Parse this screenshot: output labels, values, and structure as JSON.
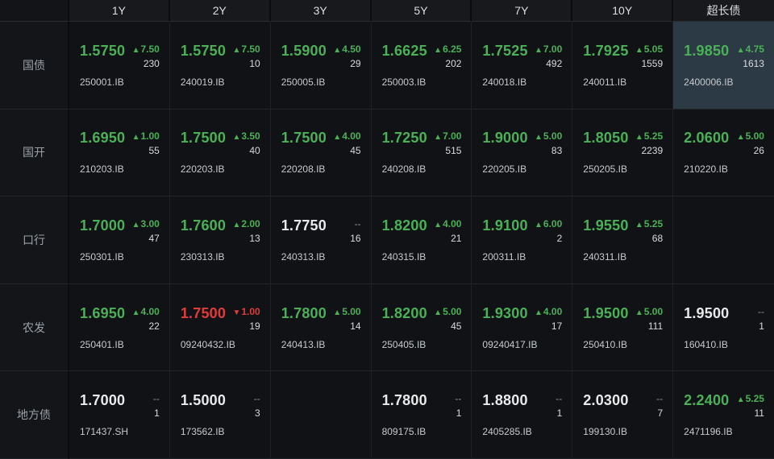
{
  "colors": {
    "up": "#4bb157",
    "down": "#e03c3c",
    "neutral": "#e8e9ea",
    "muted": "#8f969c",
    "selected_bg": "#2b3a45"
  },
  "icons": {
    "up": "▲",
    "down": "▼",
    "flat": "--"
  },
  "board": {
    "columns": [
      "1Y",
      "2Y",
      "3Y",
      "5Y",
      "7Y",
      "10Y",
      "超长债"
    ],
    "rows": [
      {
        "label": "国债",
        "cells": [
          {
            "value": "1.5750",
            "dir": "up",
            "change": "7.50",
            "volume": "230",
            "code": "250001.IB"
          },
          {
            "value": "1.5750",
            "dir": "up",
            "change": "7.50",
            "volume": "10",
            "code": "240019.IB"
          },
          {
            "value": "1.5900",
            "dir": "up",
            "change": "4.50",
            "volume": "29",
            "code": "250005.IB"
          },
          {
            "value": "1.6625",
            "dir": "up",
            "change": "6.25",
            "volume": "202",
            "code": "250003.IB"
          },
          {
            "value": "1.7525",
            "dir": "up",
            "change": "7.00",
            "volume": "492",
            "code": "240018.IB"
          },
          {
            "value": "1.7925",
            "dir": "up",
            "change": "5.05",
            "volume": "1559",
            "code": "240011.IB"
          },
          {
            "value": "1.9850",
            "dir": "up",
            "change": "4.75",
            "volume": "1613",
            "code": "2400006.IB",
            "selected": true
          }
        ]
      },
      {
        "label": "国开",
        "cells": [
          {
            "value": "1.6950",
            "dir": "up",
            "change": "1.00",
            "volume": "55",
            "code": "210203.IB"
          },
          {
            "value": "1.7500",
            "dir": "up",
            "change": "3.50",
            "volume": "40",
            "code": "220203.IB"
          },
          {
            "value": "1.7500",
            "dir": "up",
            "change": "4.00",
            "volume": "45",
            "code": "220208.IB"
          },
          {
            "value": "1.7250",
            "dir": "up",
            "change": "7.00",
            "volume": "515",
            "code": "240208.IB"
          },
          {
            "value": "1.9000",
            "dir": "up",
            "change": "5.00",
            "volume": "83",
            "code": "220205.IB"
          },
          {
            "value": "1.8050",
            "dir": "up",
            "change": "5.25",
            "volume": "2239",
            "code": "250205.IB"
          },
          {
            "value": "2.0600",
            "dir": "up",
            "change": "5.00",
            "volume": "26",
            "code": "210220.IB"
          }
        ]
      },
      {
        "label": "口行",
        "cells": [
          {
            "value": "1.7000",
            "dir": "up",
            "change": "3.00",
            "volume": "47",
            "code": "250301.IB"
          },
          {
            "value": "1.7600",
            "dir": "up",
            "change": "2.00",
            "volume": "13",
            "code": "230313.IB"
          },
          {
            "value": "1.7750",
            "dir": "flat",
            "change": "--",
            "volume": "16",
            "code": "240313.IB"
          },
          {
            "value": "1.8200",
            "dir": "up",
            "change": "4.00",
            "volume": "21",
            "code": "240315.IB"
          },
          {
            "value": "1.9100",
            "dir": "up",
            "change": "6.00",
            "volume": "2",
            "code": "200311.IB"
          },
          {
            "value": "1.9550",
            "dir": "up",
            "change": "5.25",
            "volume": "68",
            "code": "240311.IB"
          },
          null
        ]
      },
      {
        "label": "农发",
        "cells": [
          {
            "value": "1.6950",
            "dir": "up",
            "change": "4.00",
            "volume": "22",
            "code": "250401.IB"
          },
          {
            "value": "1.7500",
            "dir": "down",
            "change": "1.00",
            "volume": "19",
            "code": "09240432.IB"
          },
          {
            "value": "1.7800",
            "dir": "up",
            "change": "5.00",
            "volume": "14",
            "code": "240413.IB"
          },
          {
            "value": "1.8200",
            "dir": "up",
            "change": "5.00",
            "volume": "45",
            "code": "250405.IB"
          },
          {
            "value": "1.9300",
            "dir": "up",
            "change": "4.00",
            "volume": "17",
            "code": "09240417.IB"
          },
          {
            "value": "1.9500",
            "dir": "up",
            "change": "5.00",
            "volume": "111",
            "code": "250410.IB"
          },
          {
            "value": "1.9500",
            "dir": "flat",
            "change": "--",
            "volume": "1",
            "code": "160410.IB"
          }
        ]
      },
      {
        "label": "地方债",
        "cells": [
          {
            "value": "1.7000",
            "dir": "flat",
            "change": "--",
            "volume": "1",
            "code": "171437.SH"
          },
          {
            "value": "1.5000",
            "dir": "flat",
            "change": "--",
            "volume": "3",
            "code": "173562.IB"
          },
          null,
          {
            "value": "1.7800",
            "dir": "flat",
            "change": "--",
            "volume": "1",
            "code": "809175.IB"
          },
          {
            "value": "1.8800",
            "dir": "flat",
            "change": "--",
            "volume": "1",
            "code": "2405285.IB"
          },
          {
            "value": "2.0300",
            "dir": "flat",
            "change": "--",
            "volume": "7",
            "code": "199130.IB"
          },
          {
            "value": "2.2400",
            "dir": "up",
            "change": "5.25",
            "volume": "11",
            "code": "2471196.IB"
          }
        ]
      }
    ]
  }
}
